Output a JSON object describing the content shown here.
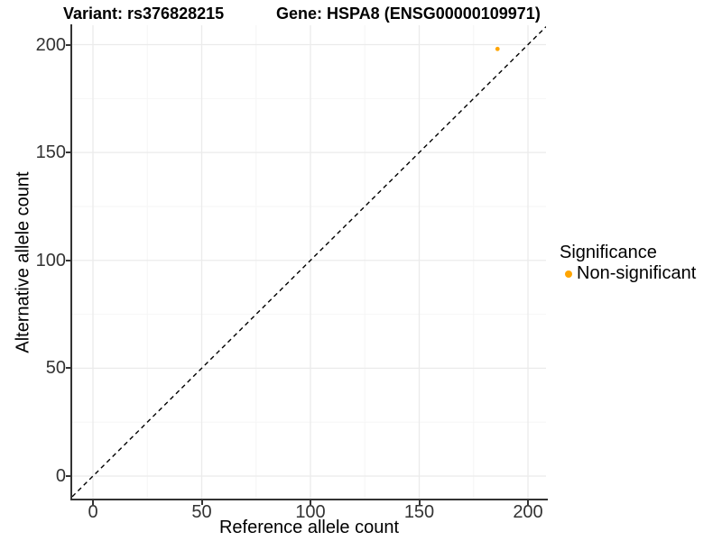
{
  "titles": {
    "variant": "Variant: rs376828215",
    "gene": "Gene: HSPA8 (ENSG00000109971)"
  },
  "axes": {
    "x": {
      "title": "Reference allele count",
      "major_ticks": [
        0,
        50,
        100,
        150,
        200
      ],
      "minor_ticks": [
        25,
        75,
        125,
        175
      ]
    },
    "y": {
      "title": "Alternative allele count",
      "major_ticks": [
        0,
        50,
        100,
        150,
        200
      ],
      "minor_ticks": [
        25,
        75,
        125,
        175
      ]
    }
  },
  "legend": {
    "title": "Significance",
    "items": [
      {
        "label": "Non-significant",
        "color": "#FFA500"
      }
    ]
  },
  "chart_data": {
    "type": "scatter",
    "title": "Variant: rs376828215 — Gene: HSPA8 (ENSG00000109971)",
    "xlabel": "Reference allele count",
    "ylabel": "Alternative allele count",
    "xlim": [
      -10,
      210
    ],
    "ylim": [
      -10,
      210
    ],
    "x_ticks": [
      0,
      50,
      100,
      150,
      200
    ],
    "y_ticks": [
      0,
      50,
      100,
      150,
      200
    ],
    "grid": "major+minor",
    "legend_position": "right",
    "series": [
      {
        "name": "Non-significant",
        "color": "#FFA500",
        "marker": "circle",
        "points": [
          {
            "x": 186,
            "y": 198
          }
        ]
      }
    ],
    "reference_line": {
      "type": "identity y=x",
      "linestyle": "dashed",
      "color": "#000000"
    }
  },
  "colors": {
    "background": "#FFFFFF",
    "grid_major": "#EBEBEB",
    "grid_minor": "#F6F6F6",
    "axis_line": "#333333",
    "tick_label": "#333333",
    "point": "#FFA500",
    "dashed_line": "#000000"
  }
}
